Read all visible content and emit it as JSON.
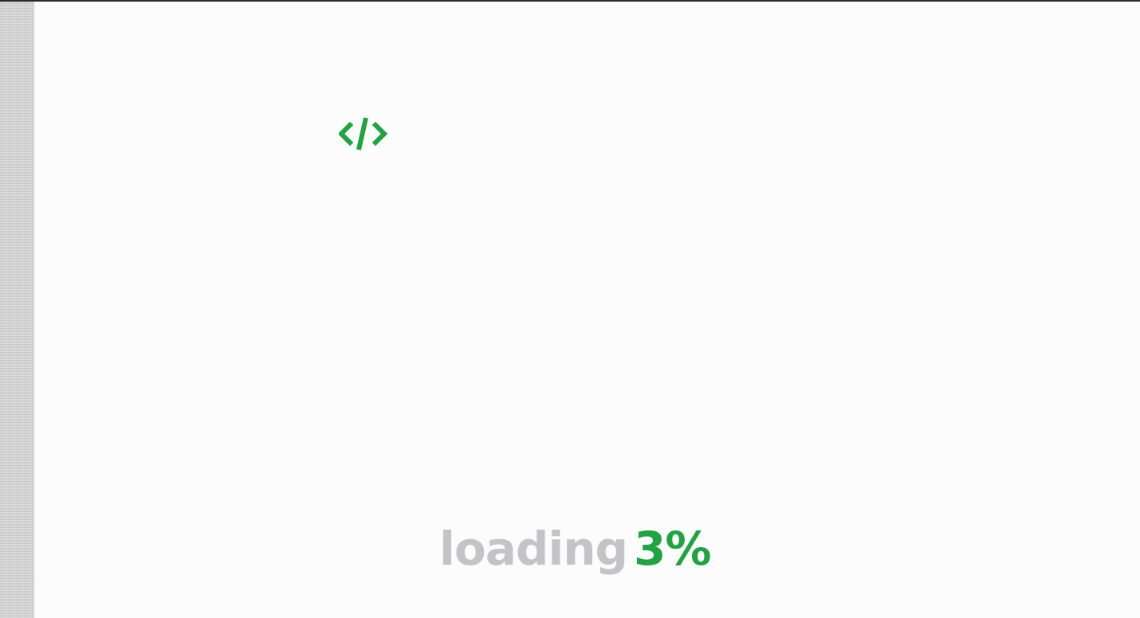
{
  "loader": {
    "icon": "code-brackets-icon",
    "word": "loading",
    "percent_text": "3%",
    "progress_percent": 3
  },
  "colors": {
    "accent": "#22a343",
    "muted_text": "#c4c4c8",
    "background": "#fcfcfc",
    "side_strip": "#cfcfcf"
  }
}
